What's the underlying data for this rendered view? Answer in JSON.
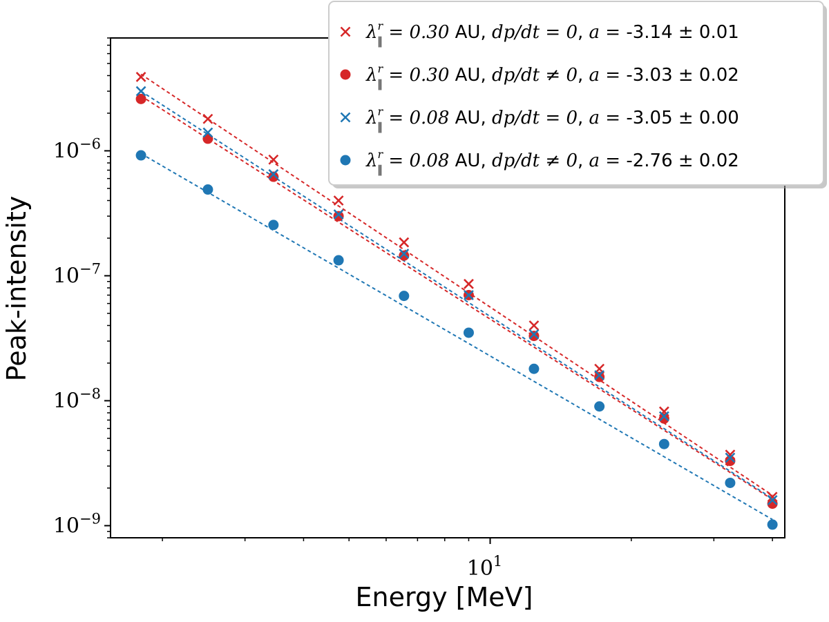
{
  "chart_data": {
    "type": "scatter",
    "title": "",
    "xlabel": "Energy [MeV]",
    "ylabel": "Peak-intensity",
    "xscale": "log",
    "yscale": "log",
    "xlim": [
      1.55,
      42.5
    ],
    "ylim": [
      8e-10,
      8e-06
    ],
    "x_ticks": [
      {
        "value": 10,
        "base": "10",
        "exp": "1"
      }
    ],
    "y_ticks": [
      {
        "value": 1e-06,
        "base": "10",
        "exp": "−6"
      },
      {
        "value": 1e-07,
        "base": "10",
        "exp": "−7"
      },
      {
        "value": 1e-08,
        "base": "10",
        "exp": "−8"
      },
      {
        "value": 1e-09,
        "base": "10",
        "exp": "−9"
      }
    ],
    "grid": false,
    "legend_position": "top-right",
    "x": [
      1.8,
      2.5,
      3.45,
      4.75,
      6.55,
      9.0,
      12.4,
      17.1,
      23.5,
      32.5,
      40.0
    ],
    "series": [
      {
        "name": "λ∥ʳ = 0.30 AU, dp/dt = 0, a = -3.14 ± 0.01",
        "lambda_value": "0.30",
        "condition": "dp/dt = 0",
        "a_value": "-3.14 ± 0.01",
        "marker": "x",
        "color": "#d62728",
        "values": [
          3.9e-06,
          1.8e-06,
          8.5e-07,
          4e-07,
          1.85e-07,
          8.6e-08,
          4e-08,
          1.8e-08,
          8.2e-09,
          3.7e-09,
          1.7e-09
        ],
        "fit_line": [
          4.1e-06,
          1.75e-09
        ]
      },
      {
        "name": "λ∥ʳ = 0.30 AU, dp/dt ≠ 0, a = -3.03 ± 0.02",
        "lambda_value": "0.30",
        "condition": "dp/dt ≠ 0",
        "a_value": "-3.03 ± 0.02",
        "marker": "o",
        "color": "#d62728",
        "values": [
          2.6e-06,
          1.25e-06,
          6.2e-07,
          3e-07,
          1.45e-07,
          7e-08,
          3.3e-08,
          1.55e-08,
          7.2e-09,
          3.3e-09,
          1.5e-09
        ],
        "fit_line": [
          2.75e-06,
          1.62e-09
        ]
      },
      {
        "name": "λ∥ʳ = 0.08 AU, dp/dt = 0, a = -3.05 ± 0.00",
        "lambda_value": "0.08",
        "condition": "dp/dt = 0",
        "a_value": "-3.05 ± 0.00",
        "marker": "x",
        "color": "#1f77b4",
        "values": [
          3e-06,
          1.4e-06,
          6.5e-07,
          3.1e-07,
          1.5e-07,
          7e-08,
          3.4e-08,
          1.6e-08,
          7.5e-09,
          3.5e-09,
          1.6e-09
        ],
        "fit_line": [
          3e-06,
          1.65e-09
        ]
      },
      {
        "name": "λ∥ʳ = 0.08 AU, dp/dt ≠ 0, a = -2.76 ± 0.02",
        "lambda_value": "0.08",
        "condition": "dp/dt ≠ 0",
        "a_value": "-2.76 ± 0.02",
        "marker": "o",
        "color": "#1f77b4",
        "values": [
          9.2e-07,
          4.9e-07,
          2.55e-07,
          1.33e-07,
          6.9e-08,
          3.5e-08,
          1.8e-08,
          9e-09,
          4.5e-09,
          2.2e-09,
          1.02e-09
        ],
        "fit_line": [
          9.5e-07,
          1.12e-09
        ]
      }
    ]
  }
}
